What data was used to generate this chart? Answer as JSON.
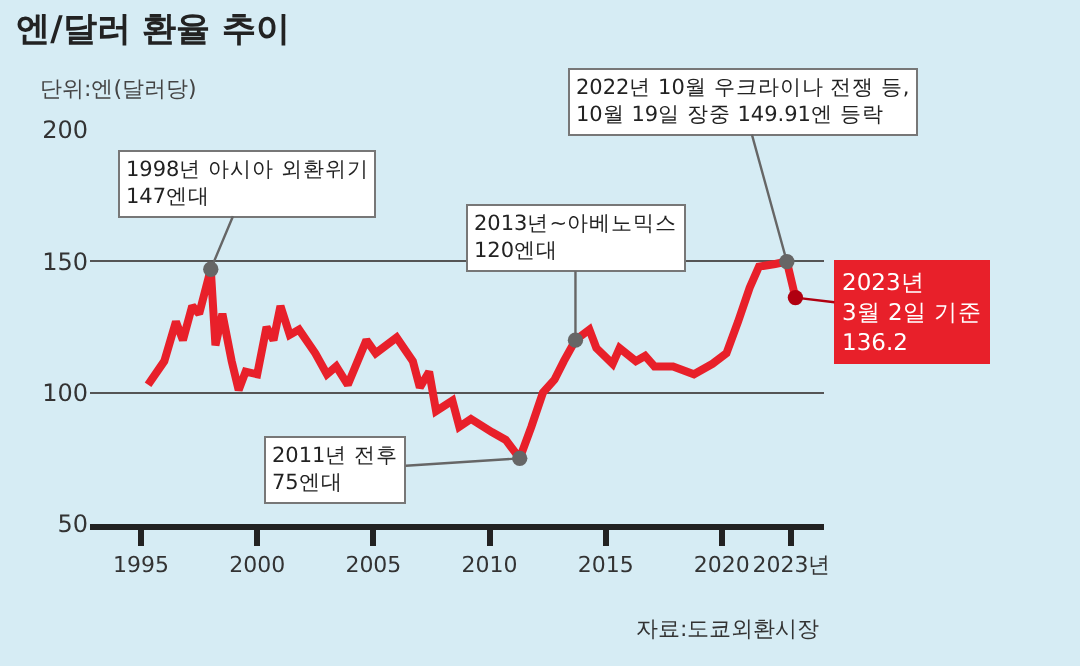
{
  "chart_data": {
    "type": "line",
    "title": "엔/달러 환율 추이",
    "subtitle": "단위:엔(달러당)",
    "x": [
      1995.3,
      1996.0,
      1996.5,
      1996.8,
      1997.2,
      1997.5,
      1998.0,
      1998.2,
      1998.5,
      1998.9,
      1999.2,
      1999.5,
      2000.0,
      2000.4,
      2000.7,
      2001.0,
      2001.4,
      2001.8,
      2002.5,
      2003.0,
      2003.4,
      2003.9,
      2004.7,
      2005.1,
      2006.0,
      2006.7,
      2007.0,
      2007.4,
      2007.7,
      2008.4,
      2008.7,
      2009.2,
      2010.1,
      2010.7,
      2011.3,
      2011.8,
      2012.3,
      2012.8,
      2013.2,
      2013.7,
      2014.3,
      2014.6,
      2015.3,
      2015.6,
      2016.3,
      2016.7,
      2017.1,
      2017.9,
      2018.8,
      2019.6,
      2020.2,
      2020.7,
      2021.2,
      2021.6,
      2022.3,
      2022.8,
      2023.17
    ],
    "series": [
      {
        "color": "#e8202a",
        "values": [
          103,
          112,
          127,
          120,
          133,
          130,
          147,
          118,
          130,
          112,
          101,
          108,
          107,
          125,
          120,
          133,
          122,
          124,
          115,
          107,
          110,
          103,
          120,
          115,
          121,
          112,
          102,
          108,
          93,
          97,
          87,
          90,
          85,
          82,
          75,
          87,
          100,
          105,
          112,
          120,
          124,
          117,
          111,
          117,
          112,
          114,
          110,
          110,
          107,
          111,
          115,
          127,
          140,
          148,
          149,
          149.91,
          136.2
        ]
      }
    ],
    "xlim": [
      1992.8,
      2024.4
    ],
    "ylim": [
      50,
      200
    ],
    "xticks": [
      1995,
      2000,
      2005,
      2010,
      2015,
      2020,
      {
        "value": 2023,
        "label": "2023년"
      }
    ],
    "yticks": [
      50,
      100,
      150,
      200
    ],
    "grid": "y",
    "marker": "none",
    "line_style": "solid",
    "annotations": [
      {
        "text": "1998년 아시아 외환위기\n147엔대",
        "x": 1998.0,
        "y": 147
      },
      {
        "text": "2011년 전후\n75엔대",
        "x": 2011.3,
        "y": 75
      },
      {
        "text": "2013년~아베노믹스\n120엔대",
        "x": 2013.7,
        "y": 120
      },
      {
        "text": "2022년 10월 우크라이나 전쟁 등,\n10월 19일 장중 149.91엔 등락",
        "x": 2022.8,
        "y": 149.91
      },
      {
        "text": "2023년\n3월 2일 기준\n136.2",
        "x": 2023.17,
        "y": 136.2
      },
      "자료:도쿄외환시장"
    ]
  }
}
